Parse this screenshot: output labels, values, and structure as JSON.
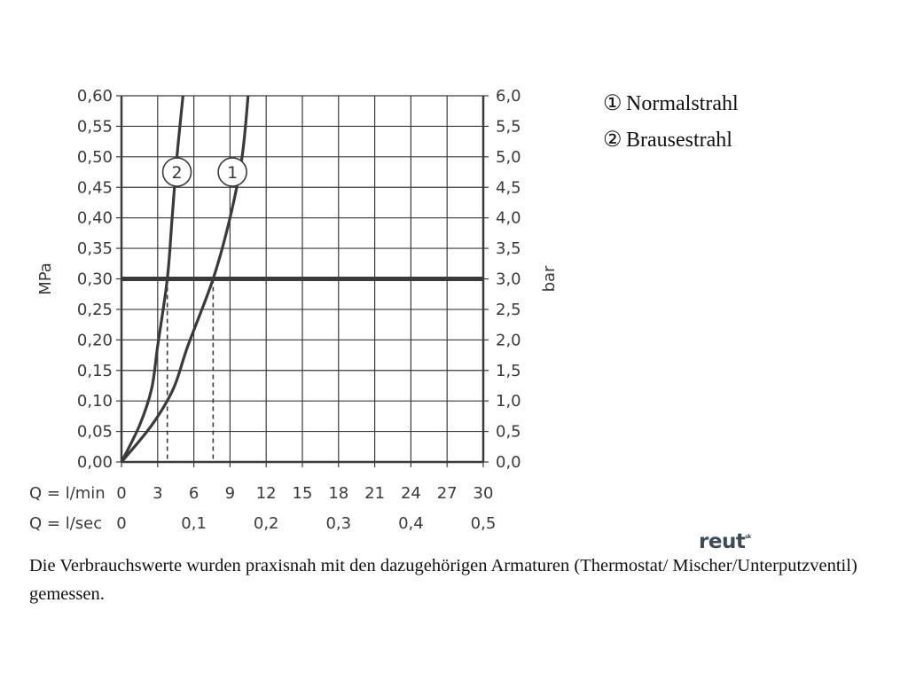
{
  "chart_data": {
    "type": "line",
    "axes": {
      "y_left": {
        "label": "MPa",
        "range": [
          0,
          0.6
        ],
        "ticks": [
          "0,00",
          "0,05",
          "0,10",
          "0,15",
          "0,20",
          "0,25",
          "0,30",
          "0,35",
          "0,40",
          "0,45",
          "0,50",
          "0,55",
          "0,60"
        ]
      },
      "y_right": {
        "label": "bar",
        "range": [
          0,
          6
        ],
        "ticks": [
          "0,0",
          "0,5",
          "1,0",
          "1,5",
          "2,0",
          "2,5",
          "3,0",
          "3,5",
          "4,0",
          "4,5",
          "5,0",
          "5,5",
          "6,0"
        ]
      },
      "x_primary": {
        "label": "Q = l/min",
        "range": [
          0,
          30
        ],
        "ticks": [
          "0",
          "3",
          "6",
          "9",
          "12",
          "15",
          "18",
          "21",
          "24",
          "27",
          "30"
        ]
      },
      "x_secondary": {
        "label": "Q = l/sec",
        "ticks": [
          "0",
          "0,1",
          "0,2",
          "0,3",
          "0,4",
          "0,5"
        ],
        "tick_values_lmin": [
          0,
          6,
          12,
          18,
          24,
          30
        ]
      }
    },
    "grid": true,
    "reference_line": {
      "y": 0.3
    },
    "series": [
      {
        "name": "Normalstrahl",
        "marker": "1",
        "x": [
          0,
          2.5,
          4.3,
          5.5,
          7.6,
          9.0,
          10.0,
          10.5
        ],
        "y": [
          0,
          0.06,
          0.12,
          0.19,
          0.3,
          0.4,
          0.5,
          0.6
        ],
        "marker_at": [
          9.2,
          0.475
        ]
      },
      {
        "name": "Brausestrahl",
        "marker": "2",
        "x": [
          0,
          1.5,
          2.5,
          3.0,
          3.8,
          4.2,
          4.6,
          5.1
        ],
        "y": [
          0,
          0.06,
          0.12,
          0.19,
          0.3,
          0.4,
          0.5,
          0.6
        ],
        "marker_at": [
          4.6,
          0.475
        ]
      }
    ],
    "flow_markers_lmin": [
      3.8,
      7.6
    ]
  },
  "legend": [
    {
      "marker": "①",
      "label": "Normalstrahl"
    },
    {
      "marker": "②",
      "label": "Brausestrahl"
    }
  ],
  "note": "Die Verbrauchswerte wurden praxisnah mit den dazugehörigen Armaturen (Thermostat/ Mischer/Unterputzventil) gemessen.",
  "logo": {
    "text": "reut",
    "sup": "sk"
  }
}
